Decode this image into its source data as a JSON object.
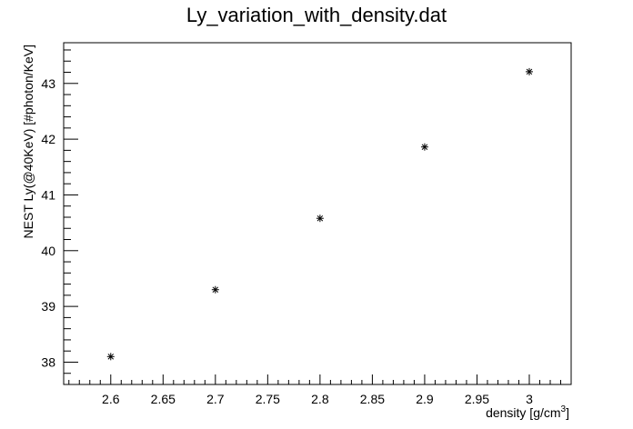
{
  "chart_data": {
    "type": "scatter",
    "title": "Ly_variation_with_density.dat",
    "xlabel": "density [g/cm",
    "xlabel_superscript": "3",
    "xlabel_suffix": "]",
    "ylabel": "NEST  Ly(@40KeV)  [#photon/KeV]",
    "xlim": [
      2.555,
      3.04
    ],
    "ylim": [
      37.6,
      43.73
    ],
    "x_ticks": [
      "2.6",
      "2.65",
      "2.7",
      "2.75",
      "2.8",
      "2.85",
      "2.9",
      "2.95",
      "3"
    ],
    "y_ticks": [
      "38",
      "39",
      "40",
      "41",
      "42",
      "43"
    ],
    "marker": "asterisk",
    "grid": false,
    "series": [
      {
        "x": [
          2.6,
          2.7,
          2.8,
          2.9,
          3.0
        ],
        "y": [
          38.1,
          39.3,
          40.58,
          41.86,
          43.21
        ]
      }
    ]
  }
}
